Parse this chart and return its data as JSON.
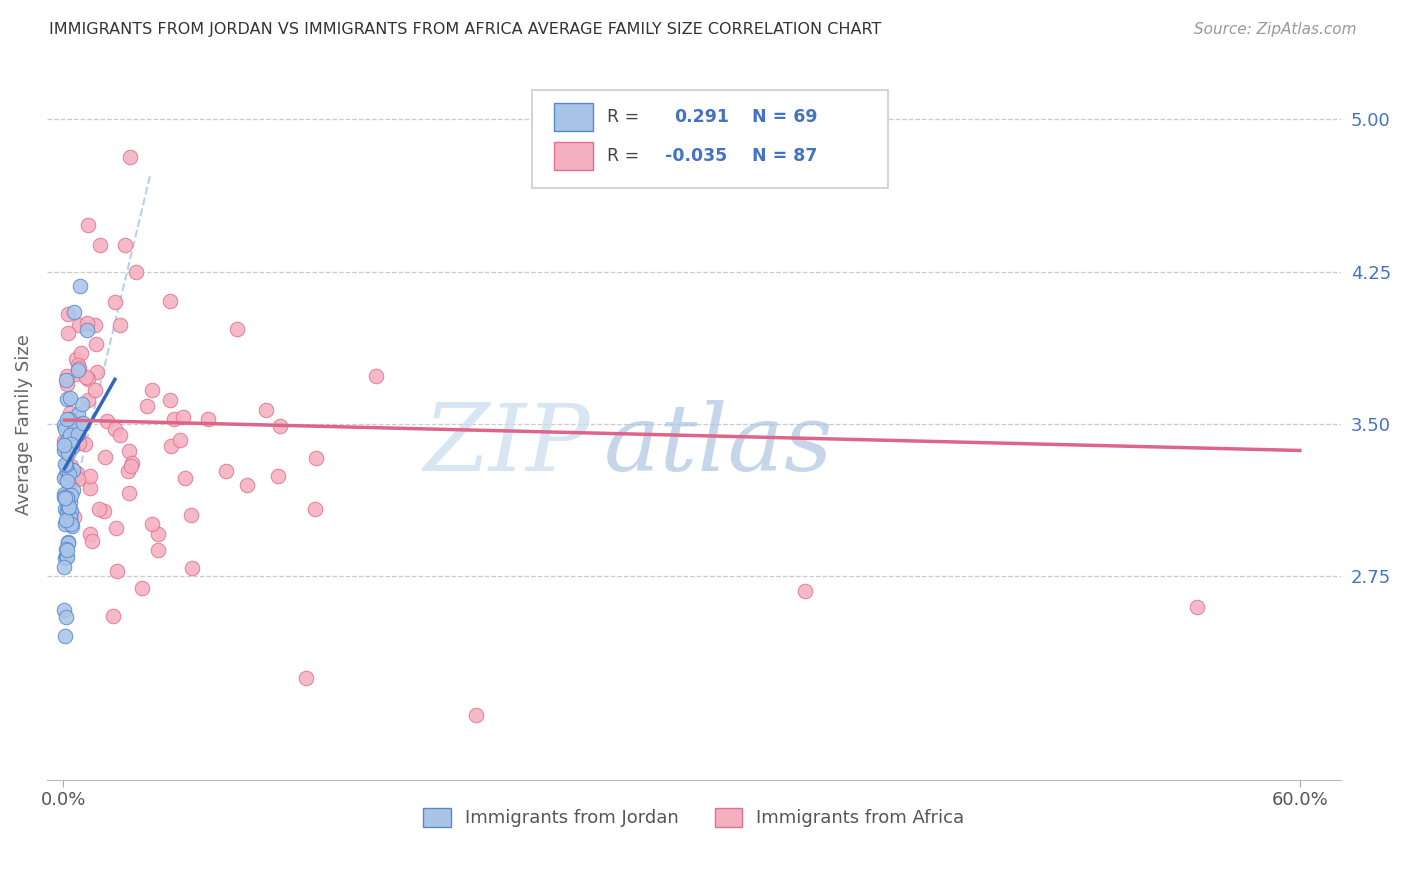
{
  "title": "IMMIGRANTS FROM JORDAN VS IMMIGRANTS FROM AFRICA AVERAGE FAMILY SIZE CORRELATION CHART",
  "source": "Source: ZipAtlas.com",
  "ylabel": "Average Family Size",
  "right_yticks": [
    2.75,
    3.5,
    4.25,
    5.0
  ],
  "background_color": "#ffffff",
  "jordan_color": "#aac4e8",
  "jordan_edge_color": "#5588cc",
  "jordan_line_color": "#3366bb",
  "africa_color": "#f5b0c0",
  "africa_edge_color": "#e07090",
  "africa_line_color": "#dd6688",
  "watermark_zip": "ZIP",
  "watermark_atlas": "atlas",
  "xlim": [
    0.0,
    0.62
  ],
  "ylim": [
    1.75,
    5.25
  ],
  "legend_r1": "0.291",
  "legend_n1": "69",
  "legend_r2": "-0.035",
  "legend_n2": "87",
  "dash_line_x": [
    0.005,
    0.042
  ],
  "dash_line_y": [
    3.15,
    4.72
  ],
  "jordan_line_x": [
    0.0005,
    0.025
  ],
  "jordan_line_y": [
    3.28,
    3.72
  ],
  "africa_line_x": [
    0.0005,
    0.6
  ],
  "africa_line_y": [
    3.52,
    3.37
  ]
}
